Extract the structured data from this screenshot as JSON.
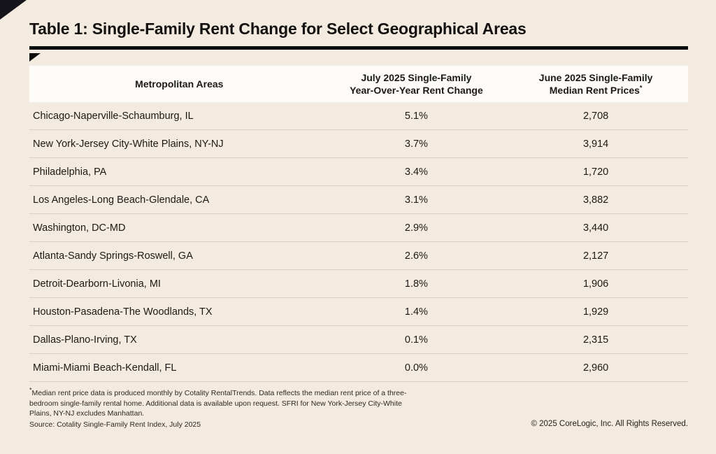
{
  "page": {
    "title": "Table 1: Single-Family Rent Change for Select Geographical Areas",
    "copyright": "© 2025 CoreLogic, Inc. All Rights Reserved."
  },
  "header": {
    "col1": "Metropolitan Areas",
    "col2_line1": "July 2025 Single-Family",
    "col2_line2": "Year-Over-Year Rent Change",
    "col3_line1": "June 2025 Single-Family",
    "col3_line2": "Median Rent Prices",
    "col3_sup": "*"
  },
  "footnote": {
    "sup": "*",
    "text": "Median rent price data is produced monthly by Cotality RentalTrends. Data reflects the median rent price of a three-bedroom single-family rental home. Additional data is available upon request. SFRI for New York-Jersey City-White Plains, NY-NJ excludes Manhattan.",
    "source": "Source: Cotality Single-Family Rent Index, July 2025"
  },
  "chart_data": {
    "type": "table",
    "title": "Table 1: Single-Family Rent Change for Select Geographical Areas",
    "columns": [
      "Metropolitan Areas",
      "July 2025 Single-Family Year-Over-Year Rent Change",
      "June 2025 Single-Family Median Rent Prices*"
    ],
    "rows": [
      [
        "Chicago-Naperville-Schaumburg, IL",
        "5.1%",
        "2,708"
      ],
      [
        "New York-Jersey City-White Plains, NY-NJ",
        "3.7%",
        "3,914"
      ],
      [
        "Philadelphia, PA",
        "3.4%",
        "1,720"
      ],
      [
        "Los Angeles-Long Beach-Glendale, CA",
        "3.1%",
        "3,882"
      ],
      [
        "Washington, DC-MD",
        "2.9%",
        "3,440"
      ],
      [
        "Atlanta-Sandy Springs-Roswell, GA",
        "2.6%",
        "2,127"
      ],
      [
        "Detroit-Dearborn-Livonia, MI",
        "1.8%",
        "1,906"
      ],
      [
        "Houston-Pasadena-The Woodlands, TX",
        "1.4%",
        "1,929"
      ],
      [
        "Dallas-Plano-Irving, TX",
        "0.1%",
        "2,315"
      ],
      [
        "Miami-Miami Beach-Kendall, FL",
        "0.0%",
        "2,960"
      ]
    ]
  },
  "colors": {
    "background": "#f4ebe0",
    "header_row": "#fdfcf9",
    "text": "#1b1916",
    "divider": "#dfd1c0",
    "accent_rule": "#0c0c0c"
  }
}
